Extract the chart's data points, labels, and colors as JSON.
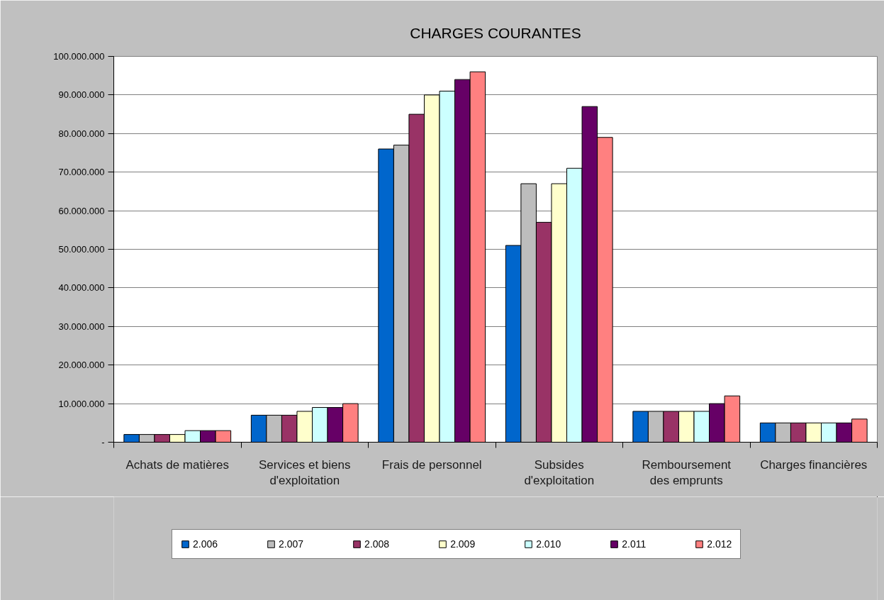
{
  "chart_data": {
    "type": "bar",
    "title": "CHARGES COURANTES",
    "categories": [
      "Achats de matières",
      "Services et biens d'exploitation",
      "Frais de personnel",
      "Subsides d'exploitation",
      "Remboursement des emprunts",
      "Charges financières"
    ],
    "series": [
      {
        "name": "2.006",
        "color": "#0066cc",
        "values": [
          2000000,
          7000000,
          76000000,
          51000000,
          8000000,
          5000000
        ]
      },
      {
        "name": "2.007",
        "color": "#bdbdbd",
        "values": [
          2000000,
          7000000,
          77000000,
          67000000,
          8000000,
          5000000
        ]
      },
      {
        "name": "2.008",
        "color": "#993366",
        "values": [
          2000000,
          7000000,
          85000000,
          57000000,
          8000000,
          5000000
        ]
      },
      {
        "name": "2.009",
        "color": "#ffffcc",
        "values": [
          2000000,
          8000000,
          90000000,
          67000000,
          8000000,
          5000000
        ]
      },
      {
        "name": "2.010",
        "color": "#ccffff",
        "values": [
          3000000,
          9000000,
          91000000,
          71000000,
          8000000,
          5000000
        ]
      },
      {
        "name": "2.011",
        "color": "#660066",
        "values": [
          3000000,
          9000000,
          94000000,
          87000000,
          10000000,
          5000000
        ]
      },
      {
        "name": "2.012",
        "color": "#ff8080",
        "values": [
          3000000,
          10000000,
          96000000,
          79000000,
          12000000,
          6000000
        ]
      }
    ],
    "ylim": [
      0,
      100000000
    ],
    "yticks": [
      {
        "value": 0,
        "label": "-"
      },
      {
        "value": 10000000,
        "label": "10.000.000"
      },
      {
        "value": 20000000,
        "label": "20.000.000"
      },
      {
        "value": 30000000,
        "label": "30.000.000"
      },
      {
        "value": 40000000,
        "label": "40.000.000"
      },
      {
        "value": 50000000,
        "label": "50.000.000"
      },
      {
        "value": 60000000,
        "label": "60.000.000"
      },
      {
        "value": 70000000,
        "label": "70.000.000"
      },
      {
        "value": 80000000,
        "label": "80.000.000"
      },
      {
        "value": 90000000,
        "label": "90.000.000"
      },
      {
        "value": 100000000,
        "label": "100.000.000"
      }
    ],
    "grid": "y",
    "legend": "bottom"
  }
}
